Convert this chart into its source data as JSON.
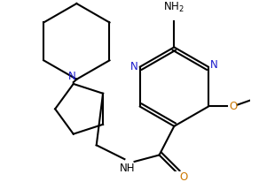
{
  "background_color": "#ffffff",
  "line_color": "#000000",
  "n_color": "#1a1acc",
  "o_color": "#cc7700",
  "bond_lw": 1.5,
  "figsize": [
    2.92,
    2.06
  ],
  "dpi": 100,
  "xlim": [
    0,
    292
  ],
  "ylim": [
    0,
    206
  ]
}
